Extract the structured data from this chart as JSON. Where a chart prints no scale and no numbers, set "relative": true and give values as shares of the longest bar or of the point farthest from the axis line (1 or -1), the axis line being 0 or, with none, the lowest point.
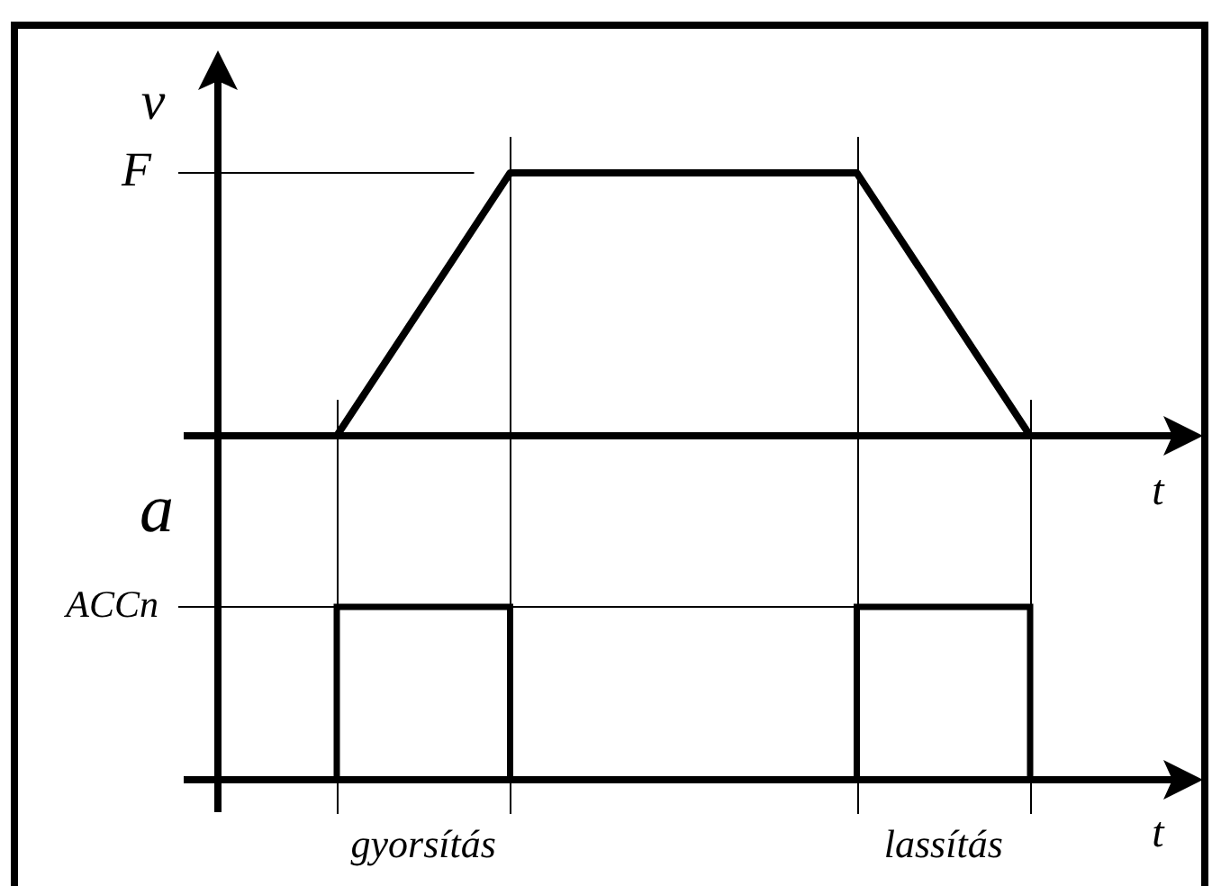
{
  "chart_data": [
    {
      "type": "line",
      "xlabel": "t",
      "ylabel": "v",
      "categories": [
        null,
        null,
        null,
        null,
        null
      ],
      "values": [
        0,
        1,
        1,
        1,
        0
      ],
      "color": "#000000",
      "relative": true,
      "ref_lines": [
        {
          "axis": "y",
          "value": 1,
          "label": "F"
        }
      ]
    },
    {
      "type": "step",
      "xlabel": "t",
      "ylabel": "a",
      "categories": [
        null,
        "gyorsítás",
        null,
        null,
        "lassítás",
        null
      ],
      "values": [
        0,
        1,
        0,
        0,
        1,
        0
      ],
      "color": "#000000",
      "relative": true,
      "ref_lines": [
        {
          "axis": "y",
          "value": 1,
          "label": "ACCn"
        }
      ]
    }
  ]
}
